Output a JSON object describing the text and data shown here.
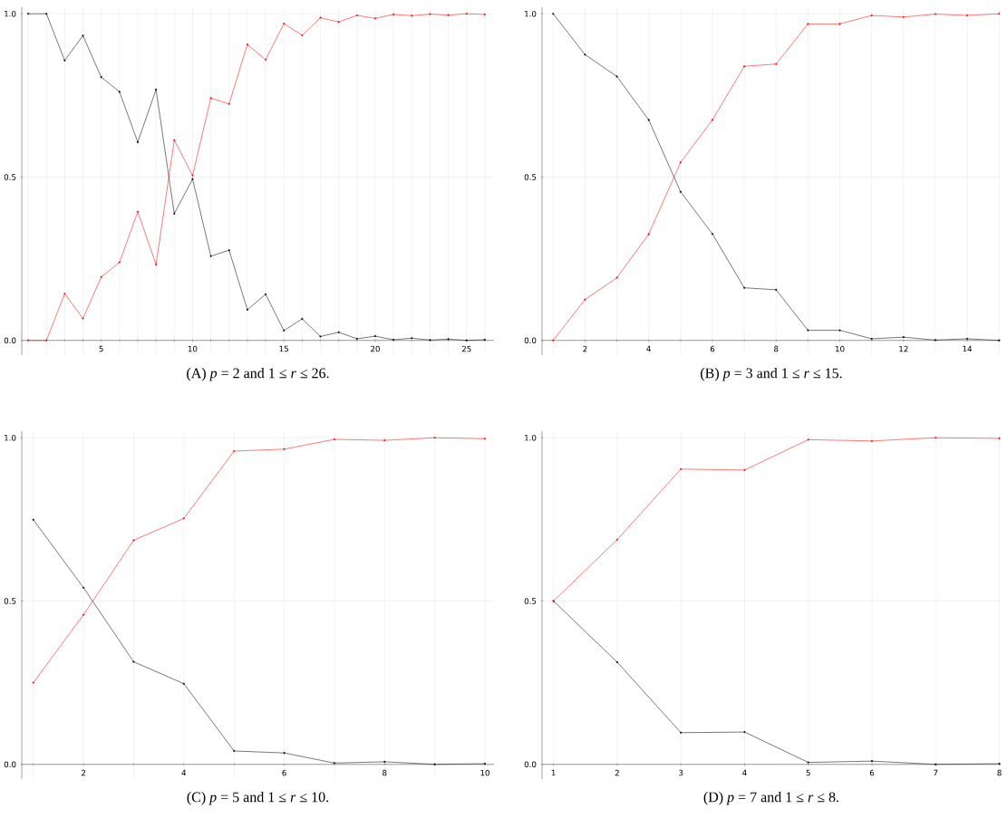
{
  "chart_data": [
    {
      "type": "line",
      "title": "(A) *p* = 2 and 1 ≤ *r* ≤ 26.",
      "x": [
        1,
        2,
        3,
        4,
        5,
        6,
        7,
        8,
        9,
        10,
        11,
        12,
        13,
        14,
        15,
        16,
        17,
        18,
        19,
        20,
        21,
        22,
        23,
        24,
        25,
        26
      ],
      "series": [
        {
          "color": "#000000",
          "values": [
            1.0,
            1.0,
            0.857,
            0.933,
            0.806,
            0.761,
            0.607,
            0.768,
            0.388,
            0.494,
            0.258,
            0.276,
            0.094,
            0.141,
            0.03,
            0.066,
            0.012,
            0.025,
            0.005,
            0.013,
            0.002,
            0.007,
            0.001,
            0.004,
            0.0,
            0.002
          ]
        },
        {
          "color": "#ff0000",
          "values": [
            0.0,
            0.0,
            0.143,
            0.067,
            0.194,
            0.239,
            0.394,
            0.232,
            0.613,
            0.505,
            0.742,
            0.724,
            0.906,
            0.859,
            0.97,
            0.934,
            0.988,
            0.975,
            0.995,
            0.986,
            0.998,
            0.994,
            0.999,
            0.996,
            1.0,
            0.998
          ]
        }
      ],
      "xlim": [
        0.65,
        26.5
      ],
      "ylim": [
        -0.045,
        1.02
      ],
      "xticks": [
        {
          "value": 1,
          "label": null
        },
        {
          "value": 2,
          "label": null
        },
        {
          "value": 3,
          "label": null
        },
        {
          "value": 4,
          "label": null
        },
        5,
        {
          "value": 6,
          "label": null
        },
        {
          "value": 7,
          "label": null
        },
        {
          "value": 8,
          "label": null
        },
        {
          "value": 9,
          "label": null
        },
        10,
        {
          "value": 11,
          "label": null
        },
        {
          "value": 12,
          "label": null
        },
        {
          "value": 13,
          "label": null
        },
        {
          "value": 14,
          "label": null
        },
        15,
        {
          "value": 16,
          "label": null
        },
        {
          "value": 17,
          "label": null
        },
        {
          "value": 18,
          "label": null
        },
        {
          "value": 19,
          "label": null
        },
        20,
        {
          "value": 21,
          "label": null
        },
        {
          "value": 22,
          "label": null
        },
        {
          "value": 23,
          "label": null
        },
        {
          "value": 24,
          "label": null
        },
        25,
        {
          "value": 26,
          "label": null
        }
      ],
      "yticks": [
        {
          "value": 0,
          "label": "0.0"
        },
        {
          "value": 0.5,
          "label": "0.5"
        },
        {
          "value": 1,
          "label": "1.0"
        }
      ],
      "grid": true,
      "marker": "circle",
      "line_style": "solid"
    },
    {
      "type": "line",
      "title": "(B) *p* = 3 and 1 ≤ *r* ≤ 15.",
      "x": [
        1,
        2,
        3,
        4,
        5,
        6,
        7,
        8,
        9,
        10,
        11,
        12,
        13,
        14,
        15
      ],
      "series": [
        {
          "color": "#000000",
          "values": [
            1.0,
            0.875,
            0.808,
            0.675,
            0.455,
            0.326,
            0.161,
            0.155,
            0.031,
            0.031,
            0.005,
            0.01,
            0.001,
            0.005,
            0.0
          ]
        },
        {
          "color": "#ff0000",
          "values": [
            0.0,
            0.125,
            0.192,
            0.325,
            0.545,
            0.675,
            0.839,
            0.846,
            0.969,
            0.969,
            0.995,
            0.99,
            0.999,
            0.995,
            1.0
          ]
        }
      ],
      "xlim": [
        0.65,
        15.05
      ],
      "ylim": [
        -0.045,
        1.02
      ],
      "xticks": [
        {
          "value": 1,
          "label": null
        },
        2,
        {
          "value": 3,
          "label": null
        },
        4,
        {
          "value": 5,
          "label": null
        },
        6,
        {
          "value": 7,
          "label": null
        },
        8,
        {
          "value": 9,
          "label": null
        },
        10,
        {
          "value": 11,
          "label": null
        },
        12,
        {
          "value": 13,
          "label": null
        },
        14,
        {
          "value": 15,
          "label": null
        }
      ],
      "yticks": [
        {
          "value": 0,
          "label": "0.0"
        },
        {
          "value": 0.5,
          "label": "0.5"
        },
        {
          "value": 1,
          "label": "1.0"
        }
      ],
      "grid": true,
      "marker": "circle",
      "line_style": "solid"
    },
    {
      "type": "line",
      "title": "(C) *p* = 5 and 1 ≤ *r* ≤ 10.",
      "x": [
        1,
        2,
        3,
        4,
        5,
        6,
        7,
        8,
        9,
        10
      ],
      "series": [
        {
          "color": "#000000",
          "values": [
            0.749,
            0.541,
            0.314,
            0.247,
            0.041,
            0.035,
            0.004,
            0.008,
            0.0,
            0.002
          ]
        },
        {
          "color": "#ff0000",
          "values": [
            0.25,
            0.458,
            0.686,
            0.753,
            0.959,
            0.965,
            0.995,
            0.992,
            1.0,
            0.997
          ]
        }
      ],
      "xlim": [
        0.77,
        10.18
      ],
      "ylim": [
        -0.045,
        1.02
      ],
      "xticks": [
        {
          "value": 1,
          "label": null
        },
        2,
        {
          "value": 3,
          "label": null
        },
        4,
        {
          "value": 5,
          "label": null
        },
        6,
        {
          "value": 7,
          "label": null
        },
        8,
        {
          "value": 9,
          "label": null
        },
        10
      ],
      "yticks": [
        {
          "value": 0,
          "label": "0.0"
        },
        {
          "value": 0.5,
          "label": "0.5"
        },
        {
          "value": 1,
          "label": "1.0"
        }
      ],
      "grid": true,
      "marker": "circle",
      "line_style": "solid"
    },
    {
      "type": "line",
      "title": "(D) *p* = 7 and 1 ≤ *r* ≤ 8.",
      "x": [
        1,
        2,
        3,
        4,
        5,
        6,
        7,
        8
      ],
      "series": [
        {
          "color": "#000000",
          "values": [
            0.5,
            0.313,
            0.097,
            0.099,
            0.006,
            0.01,
            0.0,
            0.002
          ]
        },
        {
          "color": "#ff0000",
          "values": [
            0.5,
            0.688,
            0.904,
            0.901,
            0.994,
            0.99,
            1.0,
            0.998
          ]
        }
      ],
      "xlim": [
        0.82,
        8.02
      ],
      "ylim": [
        -0.045,
        1.02
      ],
      "xticks": [
        1,
        2,
        3,
        4,
        5,
        6,
        7,
        8
      ],
      "yticks": [
        {
          "value": 0,
          "label": "0.0"
        },
        {
          "value": 0.5,
          "label": "0.5"
        },
        {
          "value": 1,
          "label": "1.0"
        }
      ],
      "grid": true,
      "marker": "circle",
      "line_style": "solid"
    }
  ]
}
